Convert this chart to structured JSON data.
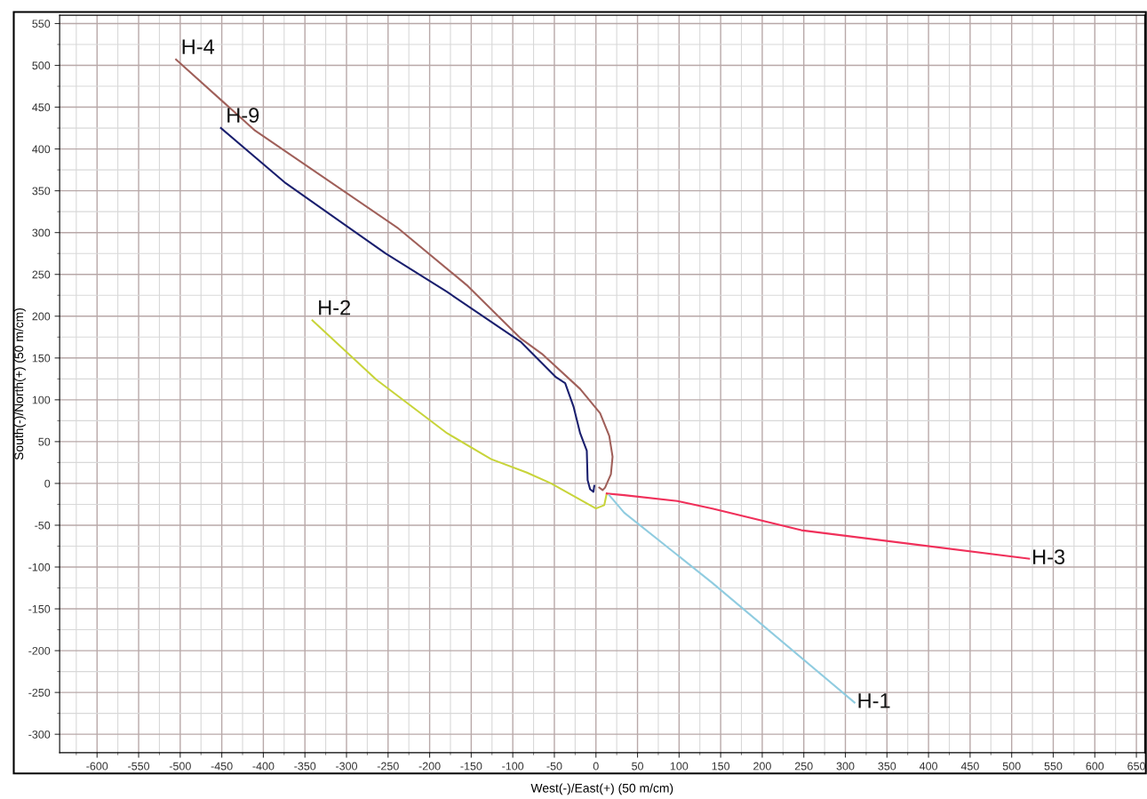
{
  "chart_data": {
    "type": "line",
    "xlabel": "West(-)/East(+) (50 m/cm)",
    "ylabel": "South(-)/North(+) (50 m/cm)",
    "xlim": [
      -645,
      660
    ],
    "ylim": [
      -322,
      560
    ],
    "xticks": [
      -600,
      -550,
      -500,
      -450,
      -400,
      -350,
      -300,
      -250,
      -200,
      -150,
      -100,
      -50,
      0,
      50,
      100,
      150,
      200,
      250,
      300,
      350,
      400,
      450,
      500,
      550,
      600,
      650
    ],
    "yticks": [
      -300,
      -250,
      -200,
      -150,
      -100,
      -50,
      0,
      50,
      100,
      150,
      200,
      250,
      300,
      350,
      400,
      450,
      500,
      550
    ],
    "grid": true,
    "legend": false,
    "marker": "none",
    "line_style": "solid",
    "series": [
      {
        "name": "H-4",
        "color": "#a0605a",
        "x": [
          -505,
          -410,
          -239,
          -154,
          -90,
          -65,
          -19,
          5,
          16,
          20,
          18,
          11,
          8,
          4
        ],
        "values": [
          507,
          422,
          306,
          236,
          173,
          155,
          113,
          84,
          57,
          32,
          11,
          -5,
          -8,
          -5
        ]
      },
      {
        "name": "H-9",
        "color": "#1a1f6e",
        "x": [
          -451,
          -373,
          -253,
          -179,
          -90,
          -48,
          -37,
          -27,
          -19,
          -11,
          -10,
          -7,
          -3,
          -2
        ],
        "values": [
          425,
          359,
          275,
          229,
          169,
          127,
          120,
          92,
          60,
          39,
          4,
          -7,
          -10,
          -3
        ]
      },
      {
        "name": "H-2",
        "color": "#c8d43a",
        "x": [
          -341,
          -264,
          -179,
          -126,
          -83,
          -54,
          0,
          10,
          13
        ],
        "values": [
          195,
          124,
          60,
          29,
          13,
          0,
          -30,
          -26,
          -12
        ]
      },
      {
        "name": "H-3",
        "color": "#f0305a",
        "x": [
          13,
          34,
          98,
          140,
          247,
          521
        ],
        "values": [
          -12,
          -14,
          -21,
          -30,
          -56,
          -90
        ]
      },
      {
        "name": "H-1",
        "color": "#90cce0",
        "x": [
          16,
          34,
          140,
          311
        ],
        "values": [
          -14,
          -35,
          -119,
          -262
        ]
      }
    ]
  }
}
